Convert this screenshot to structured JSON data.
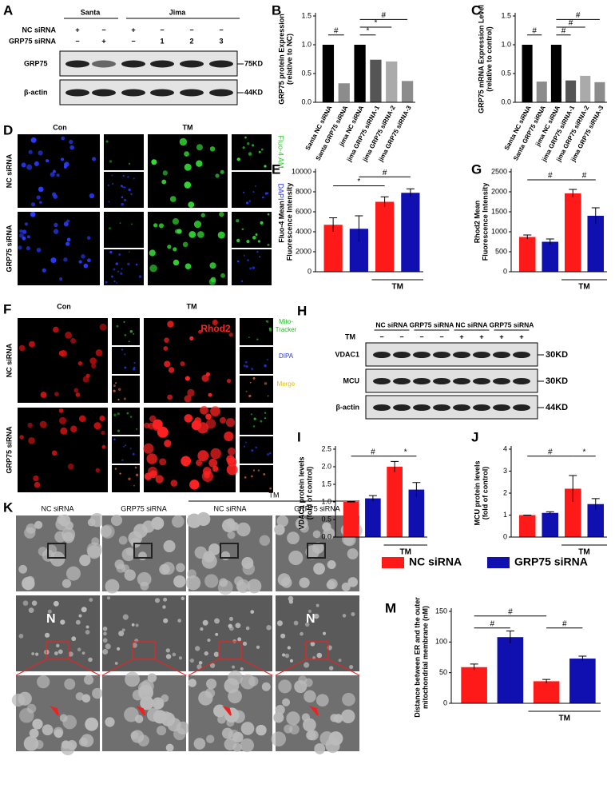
{
  "panel_a": {
    "label": "A",
    "groups": [
      "Santa",
      "Jima"
    ],
    "treatments": [
      {
        "name": "NC siRNA",
        "marks": [
          "+",
          "−",
          "+",
          "−",
          "−",
          "−"
        ]
      },
      {
        "name": "GRP75 siRNA",
        "marks": [
          "−",
          "+",
          "−",
          "1",
          "2",
          "3"
        ]
      }
    ],
    "bands": [
      {
        "name": "GRP75",
        "size": "75KD"
      },
      {
        "name": "β-actin",
        "size": "44KD"
      }
    ]
  },
  "panel_d": {
    "label": "D",
    "columns": [
      "Con",
      "TM"
    ],
    "rows": [
      "NC siRNA",
      "GRP75 siRNA"
    ],
    "channels": [
      "Fluo-4 AM",
      "DAPI"
    ]
  },
  "panel_f": {
    "label": "F",
    "columns": [
      "Con",
      "TM"
    ],
    "rows": [
      "NC siRNA",
      "GRP75 siRNA"
    ],
    "stain": "Rhod2",
    "channels": [
      [
        "Mito-",
        "Tracker"
      ],
      [
        "DIPA"
      ],
      [
        "Merge"
      ]
    ]
  },
  "panel_h": {
    "label": "H",
    "groups": [
      "NC siRNA",
      "GRP75 siRNA",
      "NC siRNA",
      "GRP75 siRNA"
    ],
    "treatment": "TM",
    "marks": [
      "−",
      "−",
      "−",
      "−",
      "+",
      "+",
      "+",
      "+"
    ],
    "bands": [
      {
        "name": "VDAC1",
        "size": "30KD"
      },
      {
        "name": "MCU",
        "size": "30KD"
      },
      {
        "name": "β-actin",
        "size": "44KD"
      }
    ]
  },
  "panel_k": {
    "label": "K",
    "columns": [
      "NC siRNA",
      "GRP75 siRNA",
      "NC siRNA",
      "GRP75 siRNA"
    ],
    "treatment": "TM",
    "nucleus": "N"
  },
  "legend": [
    {
      "name": "NC siRNA",
      "color": "#ff1a1a"
    },
    {
      "name": "GRP75 siRNA",
      "color": "#1010b0"
    }
  ],
  "chart_data": [
    {
      "type": "bar",
      "label": "B",
      "y_label": [
        "GRP75 protein Expression",
        "(relative to NC)"
      ],
      "categories": [
        "Santa NC siRNA",
        "Santa GRP75 siRNA",
        "jima NC siRNA",
        "jima GRP75 siRNA-1",
        "jima GRP75 siRNA-2",
        "jima GRP75 siRNA-3"
      ],
      "values": [
        1.0,
        0.33,
        1.0,
        0.74,
        0.71,
        0.37
      ],
      "colors": [
        "#000000",
        "#8c8c8c",
        "#000000",
        "#555555",
        "#aaaaaa",
        "#8c8c8c"
      ],
      "ylim": [
        0,
        1.5
      ],
      "yticks": [
        {
          "value": 0,
          "label": "0.0"
        },
        0.5,
        {
          "value": 1,
          "label": "1.0"
        },
        1.5
      ],
      "annotations": [
        "#",
        "#",
        "*",
        "*"
      ]
    },
    {
      "type": "bar",
      "label": "C",
      "y_label": [
        "GRP75 mRNA Expression Level",
        "(relative to control)"
      ],
      "categories": [
        "Santa NC siRNA",
        "Santa GRP75 siRNA",
        "jima NC siRNA",
        "jima GRP75 siRNA-1",
        "jima GRP75 siRNA-2",
        "jima GRP75 siRNA-3"
      ],
      "values": [
        1.0,
        0.36,
        1.0,
        0.38,
        0.46,
        0.35
      ],
      "colors": [
        "#000000",
        "#8c8c8c",
        "#000000",
        "#555555",
        "#aaaaaa",
        "#8c8c8c"
      ],
      "ylim": [
        0,
        1.5
      ],
      "yticks": [
        {
          "value": 0,
          "label": "0.0"
        },
        0.5,
        {
          "value": 1,
          "label": "1.0"
        },
        1.5
      ],
      "annotations": [
        "#",
        "#",
        "#",
        "#"
      ]
    },
    {
      "type": "bar",
      "label": "E",
      "y_label": [
        "Fluo-4 Mean",
        "Fluorescence Intensity"
      ],
      "categories": [
        null,
        "TM"
      ],
      "series": [
        {
          "color": "#ff1a1a",
          "values": [
            4700,
            7000
          ],
          "errors": [
            700,
            500
          ]
        },
        {
          "color": "#1010b0",
          "values": [
            4300,
            7900
          ],
          "errors": [
            1300,
            400
          ]
        }
      ],
      "ylim": [
        0,
        10000
      ],
      "yticks": [
        0,
        2000,
        4000,
        6000,
        8000,
        10000
      ],
      "annotations": [
        "*",
        "#"
      ]
    },
    {
      "type": "bar",
      "label": "G",
      "y_label": [
        "Rhod2 Mean",
        "Fluorescence Intensity"
      ],
      "categories": [
        null,
        "TM"
      ],
      "series": [
        {
          "color": "#ff1a1a",
          "values": [
            870,
            1960
          ],
          "errors": [
            50,
            100
          ]
        },
        {
          "color": "#1010b0",
          "values": [
            750,
            1400
          ],
          "errors": [
            70,
            200
          ]
        }
      ],
      "ylim": [
        0,
        2500
      ],
      "yticks": [
        0,
        500,
        1000,
        1500,
        2000,
        2500
      ],
      "annotations": [
        "#",
        "#"
      ]
    },
    {
      "type": "bar",
      "label": "I",
      "y_label": [
        "VDAC1 protein levels",
        "(fold of control)"
      ],
      "categories": [
        null,
        "TM"
      ],
      "series": [
        {
          "color": "#ff1a1a",
          "values": [
            1.0,
            2.0
          ],
          "errors": [
            0,
            0.15
          ]
        },
        {
          "color": "#1010b0",
          "values": [
            1.1,
            1.35
          ],
          "errors": [
            0.08,
            0.2
          ]
        }
      ],
      "ylim": [
        0,
        2.5
      ],
      "yticks": [
        {
          "value": 0,
          "label": "0.0"
        },
        0.5,
        {
          "value": 1,
          "label": "1.0"
        },
        1.5,
        {
          "value": 2,
          "label": "2.0"
        },
        2.5
      ],
      "annotations": [
        "#",
        "*"
      ]
    },
    {
      "type": "bar",
      "label": "J",
      "y_label": [
        "MCU protein levels",
        "(fold of control)"
      ],
      "categories": [
        null,
        "TM"
      ],
      "series": [
        {
          "color": "#ff1a1a",
          "values": [
            1.0,
            2.2
          ],
          "errors": [
            0,
            0.6
          ]
        },
        {
          "color": "#1010b0",
          "values": [
            1.1,
            1.5
          ],
          "errors": [
            0.05,
            0.25
          ]
        }
      ],
      "ylim": [
        0,
        4
      ],
      "yticks": [
        0,
        1,
        2,
        3,
        4
      ],
      "annotations": [
        "#",
        "*"
      ]
    },
    {
      "type": "bar",
      "label": "M",
      "y_label": [
        "Distance between ER and the outer",
        "mitochondrial membrane (nM)"
      ],
      "categories": [
        null,
        "TM"
      ],
      "series": [
        {
          "color": "#ff1a1a",
          "values": [
            59,
            36
          ],
          "errors": [
            5,
            3
          ]
        },
        {
          "color": "#1010b0",
          "values": [
            108,
            73
          ],
          "errors": [
            10,
            4
          ]
        }
      ],
      "ylim": [
        0,
        150
      ],
      "yticks": [
        0,
        50,
        100,
        150
      ],
      "annotations": [
        "#",
        "#",
        "#"
      ]
    }
  ]
}
